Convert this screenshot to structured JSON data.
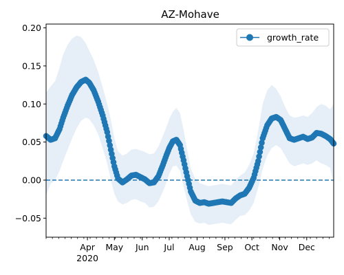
{
  "chart_data": {
    "type": "line",
    "title": "AZ-Mohave",
    "xlabel": "",
    "ylabel": "",
    "legend": {
      "entries": [
        "growth_rate"
      ],
      "placement": "top-right"
    },
    "grid": false,
    "reference_line": {
      "y": 0.0,
      "style": "dashed"
    },
    "xlim": [
      "2020-02-15",
      "2020-12-31"
    ],
    "ylim": [
      -0.075,
      0.205
    ],
    "x_ticks": [
      {
        "date": "2020-04-01",
        "label": "Apr",
        "sublabel": "2020"
      },
      {
        "date": "2020-05-01",
        "label": "May"
      },
      {
        "date": "2020-06-01",
        "label": "Jun"
      },
      {
        "date": "2020-07-01",
        "label": "Jul"
      },
      {
        "date": "2020-08-01",
        "label": "Aug"
      },
      {
        "date": "2020-09-01",
        "label": "Sep"
      },
      {
        "date": "2020-10-01",
        "label": "Oct"
      },
      {
        "date": "2020-11-01",
        "label": "Nov"
      },
      {
        "date": "2020-12-01",
        "label": "Dec"
      }
    ],
    "y_ticks": [
      {
        "value": -0.05,
        "label": "−0.05"
      },
      {
        "value": 0.0,
        "label": "0.00"
      },
      {
        "value": 0.05,
        "label": "0.05"
      },
      {
        "value": 0.1,
        "label": "0.10"
      },
      {
        "value": 0.15,
        "label": "0.15"
      },
      {
        "value": 0.2,
        "label": "0.20"
      }
    ],
    "series": [
      {
        "name": "growth_rate",
        "color": "#1f77b4",
        "band_color": "#e6eff8",
        "x": [
          "2020-02-15",
          "2020-02-20",
          "2020-02-25",
          "2020-03-01",
          "2020-03-05",
          "2020-03-10",
          "2020-03-15",
          "2020-03-20",
          "2020-03-25",
          "2020-03-30",
          "2020-04-03",
          "2020-04-08",
          "2020-04-13",
          "2020-04-18",
          "2020-04-23",
          "2020-04-27",
          "2020-05-01",
          "2020-05-05",
          "2020-05-10",
          "2020-05-15",
          "2020-05-20",
          "2020-05-25",
          "2020-05-30",
          "2020-06-04",
          "2020-06-09",
          "2020-06-14",
          "2020-06-19",
          "2020-06-24",
          "2020-06-28",
          "2020-07-01",
          "2020-07-05",
          "2020-07-09",
          "2020-07-13",
          "2020-07-17",
          "2020-07-21",
          "2020-07-25",
          "2020-07-30",
          "2020-08-04",
          "2020-08-09",
          "2020-08-14",
          "2020-08-19",
          "2020-08-24",
          "2020-08-29",
          "2020-09-03",
          "2020-09-08",
          "2020-09-13",
          "2020-09-18",
          "2020-09-23",
          "2020-09-28",
          "2020-10-03",
          "2020-10-08",
          "2020-10-13",
          "2020-10-18",
          "2020-10-23",
          "2020-10-28",
          "2020-11-02",
          "2020-11-07",
          "2020-11-12",
          "2020-11-17",
          "2020-11-22",
          "2020-11-27",
          "2020-12-02",
          "2020-12-07",
          "2020-12-12",
          "2020-12-17",
          "2020-12-22",
          "2020-12-27",
          "2020-12-31"
        ],
        "values": [
          0.058,
          0.053,
          0.055,
          0.067,
          0.082,
          0.098,
          0.112,
          0.122,
          0.129,
          0.132,
          0.128,
          0.118,
          0.103,
          0.085,
          0.063,
          0.04,
          0.018,
          0.002,
          -0.003,
          0.001,
          0.006,
          0.007,
          0.004,
          0.001,
          -0.004,
          -0.003,
          0.005,
          0.02,
          0.033,
          0.042,
          0.051,
          0.053,
          0.046,
          0.026,
          0.005,
          -0.015,
          -0.027,
          -0.03,
          -0.029,
          -0.031,
          -0.03,
          -0.029,
          -0.028,
          -0.029,
          -0.03,
          -0.024,
          -0.02,
          -0.018,
          -0.01,
          0.003,
          0.025,
          0.055,
          0.072,
          0.081,
          0.083,
          0.079,
          0.067,
          0.055,
          0.053,
          0.055,
          0.057,
          0.054,
          0.056,
          0.062,
          0.061,
          0.058,
          0.054,
          0.048
        ],
        "ci_upper": [
          0.115,
          0.123,
          0.13,
          0.148,
          0.165,
          0.178,
          0.186,
          0.19,
          0.188,
          0.18,
          0.17,
          0.158,
          0.142,
          0.122,
          0.1,
          0.08,
          0.055,
          0.038,
          0.032,
          0.035,
          0.04,
          0.041,
          0.039,
          0.037,
          0.034,
          0.035,
          0.044,
          0.058,
          0.07,
          0.08,
          0.09,
          0.095,
          0.088,
          0.066,
          0.04,
          0.015,
          0.002,
          -0.004,
          -0.006,
          -0.008,
          -0.007,
          -0.006,
          -0.005,
          -0.006,
          -0.007,
          0.001,
          0.006,
          0.01,
          0.02,
          0.035,
          0.065,
          0.1,
          0.118,
          0.125,
          0.12,
          0.11,
          0.096,
          0.085,
          0.082,
          0.083,
          0.085,
          0.083,
          0.088,
          0.096,
          0.1,
          0.098,
          0.093,
          0.1
        ],
        "ci_lower": [
          -0.02,
          -0.005,
          0.0,
          0.012,
          0.025,
          0.04,
          0.055,
          0.068,
          0.078,
          0.082,
          0.08,
          0.072,
          0.06,
          0.042,
          0.022,
          0.0,
          -0.018,
          -0.028,
          -0.032,
          -0.03,
          -0.026,
          -0.025,
          -0.028,
          -0.03,
          -0.036,
          -0.035,
          -0.028,
          -0.015,
          -0.003,
          0.008,
          0.018,
          0.019,
          0.012,
          -0.008,
          -0.028,
          -0.045,
          -0.055,
          -0.057,
          -0.056,
          -0.059,
          -0.058,
          -0.057,
          -0.056,
          -0.057,
          -0.058,
          -0.052,
          -0.047,
          -0.046,
          -0.04,
          -0.03,
          -0.01,
          0.015,
          0.032,
          0.042,
          0.046,
          0.042,
          0.032,
          0.022,
          0.018,
          0.02,
          0.022,
          0.02,
          0.022,
          0.026,
          0.022,
          0.02,
          0.016,
          -0.005
        ]
      }
    ]
  }
}
